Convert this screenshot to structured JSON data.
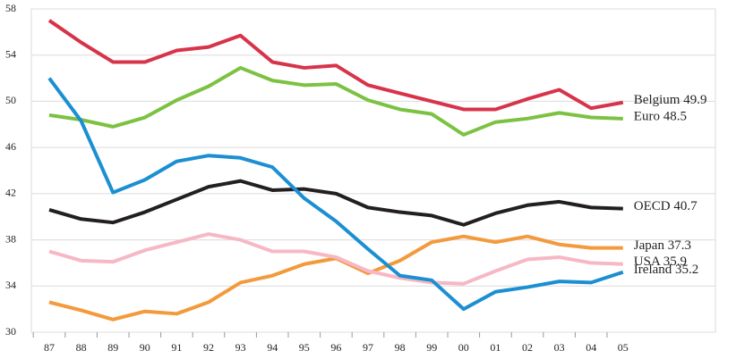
{
  "chart_data": {
    "type": "line",
    "categories": [
      "87",
      "88",
      "89",
      "90",
      "91",
      "92",
      "93",
      "94",
      "95",
      "96",
      "97",
      "98",
      "99",
      "00",
      "01",
      "02",
      "03",
      "04",
      "05"
    ],
    "ylim": [
      30,
      58
    ],
    "yticks": [
      30,
      34,
      38,
      42,
      46,
      50,
      54,
      58
    ],
    "grid": true,
    "series": [
      {
        "name": "Belgium 49.9",
        "color": "#d7334a",
        "values": [
          57.0,
          55.1,
          53.4,
          53.4,
          54.4,
          54.7,
          55.7,
          53.4,
          52.9,
          53.1,
          51.4,
          50.7,
          50.0,
          49.3,
          49.3,
          50.2,
          51.0,
          49.4,
          49.9
        ]
      },
      {
        "name": "Euro 48.5",
        "color": "#7cc242",
        "values": [
          48.8,
          48.4,
          47.8,
          48.6,
          50.1,
          51.3,
          52.9,
          51.8,
          51.4,
          51.5,
          50.1,
          49.3,
          48.9,
          47.1,
          48.2,
          48.5,
          49.0,
          48.6,
          48.5
        ]
      },
      {
        "name": "OECD 40.7",
        "color": "#231f20",
        "values": [
          40.6,
          39.8,
          39.5,
          40.4,
          41.5,
          42.6,
          43.1,
          42.3,
          42.4,
          42.0,
          40.8,
          40.4,
          40.1,
          39.3,
          40.3,
          41.0,
          41.3,
          40.8,
          40.7
        ]
      },
      {
        "name": "Japan 37.3",
        "color": "#f39a3c",
        "values": [
          32.6,
          31.9,
          31.1,
          31.8,
          31.6,
          32.6,
          34.3,
          34.9,
          35.9,
          36.4,
          35.1,
          36.2,
          37.8,
          38.3,
          37.8,
          38.3,
          37.6,
          37.3,
          37.3
        ]
      },
      {
        "name": "USA 35.9",
        "color": "#f6b8c4",
        "values": [
          37.0,
          36.2,
          36.1,
          37.1,
          37.8,
          38.5,
          38.0,
          37.0,
          37.0,
          36.5,
          35.3,
          34.7,
          34.3,
          34.2,
          35.3,
          36.3,
          36.5,
          36.0,
          35.9
        ]
      },
      {
        "name": "Ireland 35.2",
        "color": "#1b8fd2",
        "values": [
          52.0,
          48.3,
          42.1,
          43.2,
          44.8,
          45.3,
          45.1,
          44.3,
          41.6,
          39.6,
          37.2,
          34.9,
          34.5,
          32.0,
          33.5,
          33.9,
          34.4,
          34.3,
          35.2
        ]
      }
    ]
  }
}
